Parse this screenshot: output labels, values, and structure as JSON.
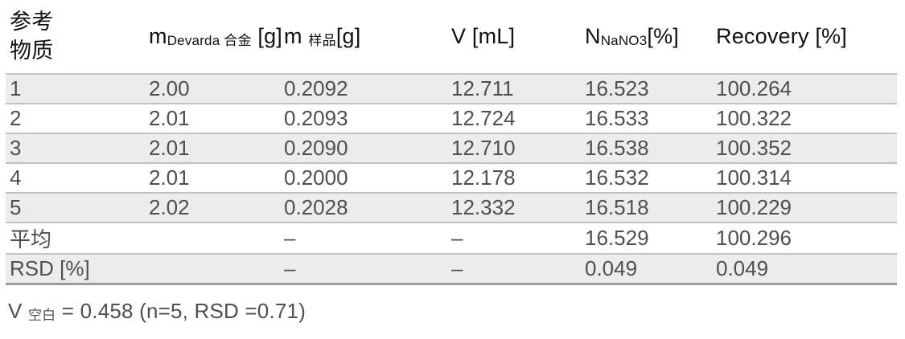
{
  "table": {
    "headers": [
      {
        "line1": "参考",
        "line2": "物质"
      },
      {
        "main": "m",
        "sub": "Devarda 合金",
        "post": " [g]"
      },
      {
        "main": "m ",
        "sub": "样品",
        "post": "[g]"
      },
      {
        "main": "V [mL]",
        "sub": "",
        "post": ""
      },
      {
        "main": "N",
        "sub": "NaNO3",
        "post": "[%]"
      },
      {
        "main": "Recovery [%]",
        "sub": "",
        "post": ""
      }
    ],
    "rows": [
      [
        "1",
        "2.00",
        "0.2092",
        "12.711",
        "16.523",
        "100.264"
      ],
      [
        "2",
        "2.01",
        "0.2093",
        "12.724",
        "16.533",
        "100.322"
      ],
      [
        "3",
        "2.01",
        "0.2090",
        "12.710",
        "16.538",
        "100.352"
      ],
      [
        "4",
        "2.01",
        "0.2000",
        "12.178",
        "16.532",
        "100.314"
      ],
      [
        "5",
        "2.02",
        "0.2028",
        "12.332",
        "16.518",
        "100.229"
      ],
      [
        "平均",
        "",
        "–",
        "–",
        "16.529",
        "100.296"
      ],
      [
        "RSD [%]",
        "",
        "–",
        "–",
        "0.049",
        "0.049"
      ]
    ]
  },
  "footer": {
    "main": "V ",
    "sub": "空白",
    "post": " = 0.458 (n=5, RSD =0.71)"
  },
  "colors": {
    "row_shade": "#ececec",
    "row_rule": "#c2c2c2",
    "table_bottom_rule": "#9d9d9d",
    "header_text": "#111111",
    "body_text": "#4f4f4f"
  }
}
